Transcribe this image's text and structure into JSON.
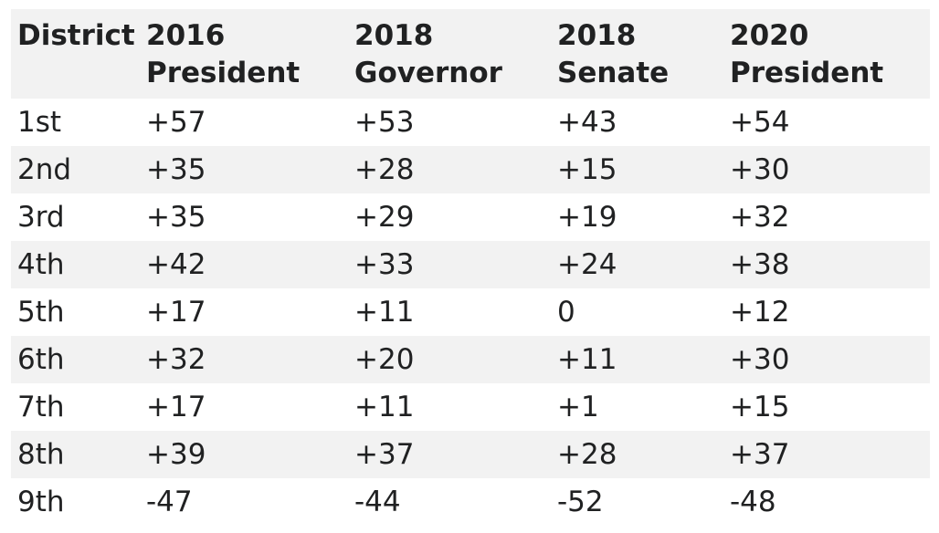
{
  "table": {
    "headers": [
      "District",
      "2016 President",
      "2018 Governor",
      "2018 Senate",
      "2020 President"
    ],
    "header_lines": [
      [
        "District",
        ""
      ],
      [
        "2016",
        "President"
      ],
      [
        "2018",
        "Governor"
      ],
      [
        "2018",
        "Senate"
      ],
      [
        "2020",
        "President"
      ]
    ],
    "rows": [
      [
        "1st",
        "+57",
        "+53",
        "+43",
        "+54"
      ],
      [
        "2nd",
        "+35",
        "+28",
        "+15",
        "+30"
      ],
      [
        "3rd",
        "+35",
        "+29",
        "+19",
        "+32"
      ],
      [
        "4th",
        "+42",
        "+33",
        "+24",
        "+38"
      ],
      [
        "5th",
        "+17",
        "+11",
        "0",
        "+12"
      ],
      [
        "6th",
        "+32",
        "+20",
        "+11",
        "+30"
      ],
      [
        "7th",
        "+17",
        "+11",
        "+1",
        "+15"
      ],
      [
        "8th",
        "+39",
        "+37",
        "+28",
        "+37"
      ],
      [
        "9th",
        "-47",
        "-44",
        "-52",
        "-48"
      ]
    ]
  },
  "colors": {
    "stripe": "#f2f2f2",
    "text": "#202122",
    "background": "#ffffff"
  }
}
